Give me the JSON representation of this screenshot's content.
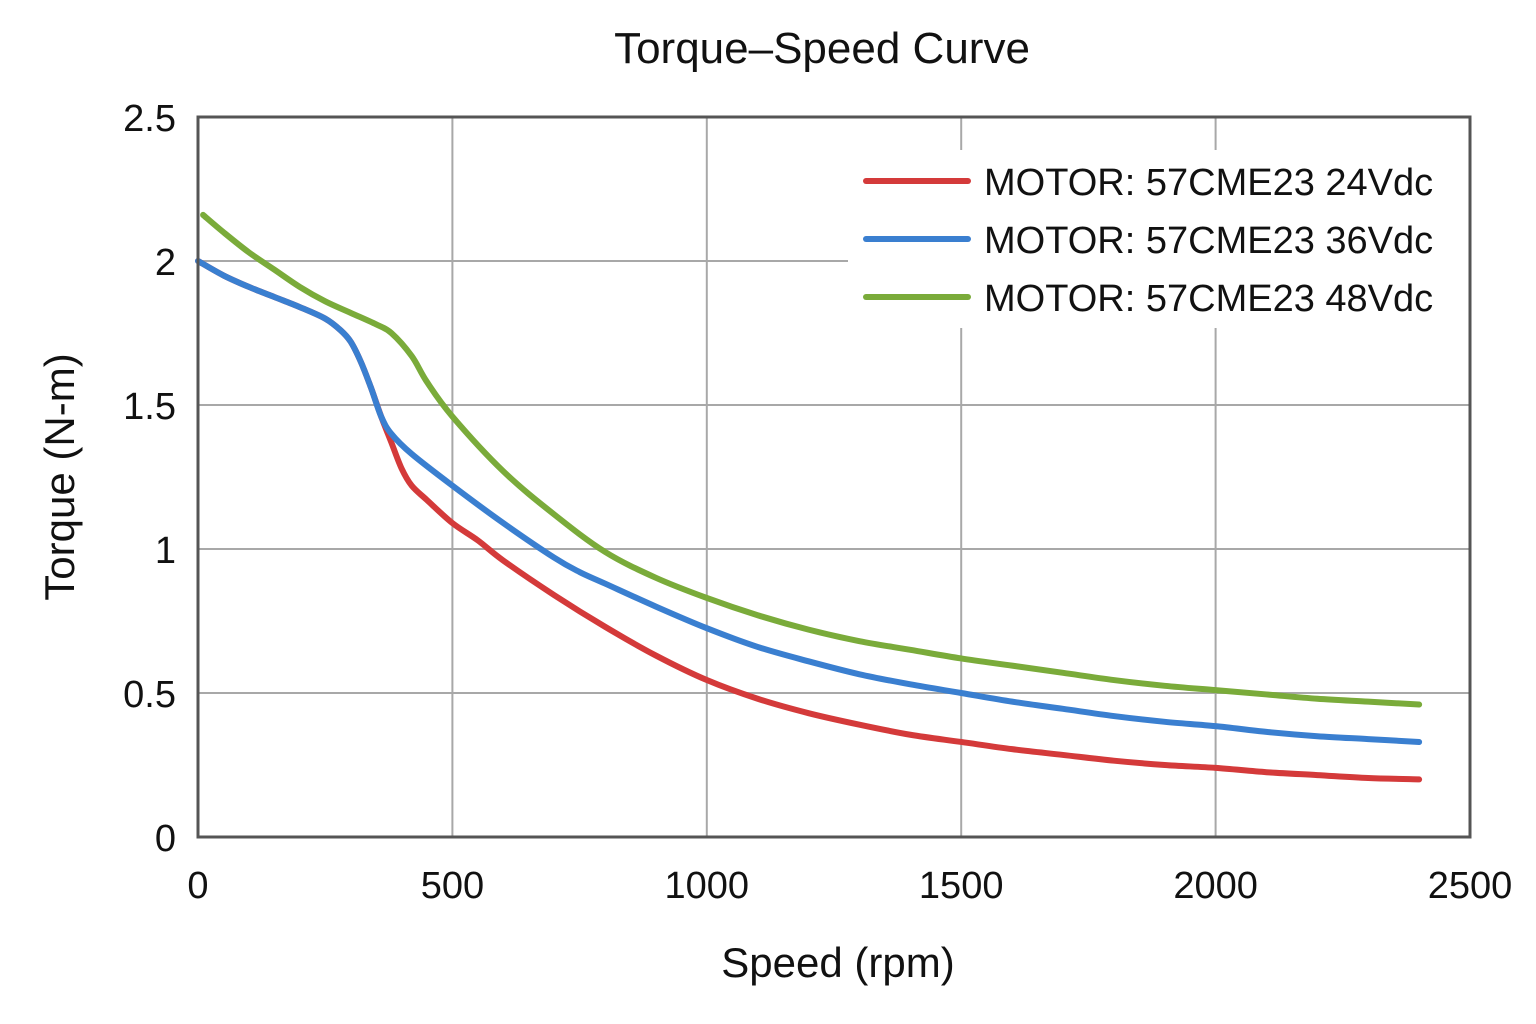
{
  "chart_data": {
    "type": "line",
    "title": "Torque–Speed Curve",
    "xlabel": "Speed (rpm)",
    "ylabel": "Torque (N-m)",
    "xlim": [
      0,
      2500
    ],
    "ylim": [
      0,
      2.5
    ],
    "xticks": [
      0,
      500,
      1000,
      1500,
      2000,
      2500
    ],
    "xtick_labels": [
      "0",
      "500",
      "1000",
      "1500",
      "2000",
      "2500"
    ],
    "yticks": [
      0,
      0.5,
      1,
      1.5,
      2,
      2.5
    ],
    "ytick_labels": [
      "0",
      "0.5",
      "1",
      "1.5",
      "2",
      "2.5"
    ],
    "grid": true,
    "legend_position": "top-right",
    "series": [
      {
        "name": "MOTOR: 57CME23 24Vdc",
        "color": "#d43a3a",
        "x": [
          0,
          50,
          100,
          150,
          200,
          250,
          280,
          300,
          320,
          340,
          360,
          380,
          400,
          420,
          450,
          500,
          550,
          600,
          700,
          800,
          900,
          1000,
          1100,
          1200,
          1300,
          1400,
          1500,
          1600,
          1700,
          1800,
          1900,
          2000,
          2100,
          2200,
          2300,
          2400
        ],
        "y": [
          2.0,
          1.95,
          1.91,
          1.875,
          1.84,
          1.8,
          1.76,
          1.72,
          1.65,
          1.56,
          1.46,
          1.37,
          1.28,
          1.22,
          1.17,
          1.09,
          1.03,
          0.96,
          0.84,
          0.73,
          0.63,
          0.545,
          0.48,
          0.43,
          0.39,
          0.355,
          0.33,
          0.305,
          0.285,
          0.265,
          0.25,
          0.24,
          0.225,
          0.215,
          0.205,
          0.2
        ]
      },
      {
        "name": "MOTOR: 57CME23 36Vdc",
        "color": "#3a7fd0",
        "x": [
          0,
          50,
          100,
          150,
          200,
          250,
          280,
          300,
          320,
          340,
          360,
          380,
          420,
          500,
          600,
          700,
          750,
          800,
          900,
          1000,
          1100,
          1200,
          1300,
          1400,
          1500,
          1600,
          1700,
          1800,
          1900,
          2000,
          2100,
          2200,
          2300,
          2400
        ],
        "y": [
          2.0,
          1.95,
          1.91,
          1.875,
          1.84,
          1.8,
          1.76,
          1.72,
          1.65,
          1.56,
          1.46,
          1.4,
          1.33,
          1.22,
          1.09,
          0.97,
          0.92,
          0.88,
          0.8,
          0.725,
          0.66,
          0.61,
          0.565,
          0.53,
          0.5,
          0.47,
          0.445,
          0.42,
          0.4,
          0.385,
          0.365,
          0.35,
          0.34,
          0.33
        ]
      },
      {
        "name": "MOTOR: 57CME23 48Vdc",
        "color": "#7aab3a",
        "x": [
          10,
          50,
          100,
          150,
          200,
          250,
          300,
          350,
          380,
          420,
          450,
          500,
          600,
          700,
          800,
          900,
          1000,
          1100,
          1200,
          1300,
          1400,
          1500,
          1600,
          1700,
          1800,
          1900,
          2000,
          2100,
          2200,
          2300,
          2400
        ],
        "y": [
          2.16,
          2.1,
          2.03,
          1.97,
          1.91,
          1.86,
          1.82,
          1.78,
          1.75,
          1.67,
          1.58,
          1.46,
          1.27,
          1.12,
          0.99,
          0.9,
          0.83,
          0.77,
          0.72,
          0.68,
          0.65,
          0.62,
          0.595,
          0.57,
          0.545,
          0.525,
          0.51,
          0.495,
          0.48,
          0.47,
          0.46
        ]
      }
    ]
  }
}
